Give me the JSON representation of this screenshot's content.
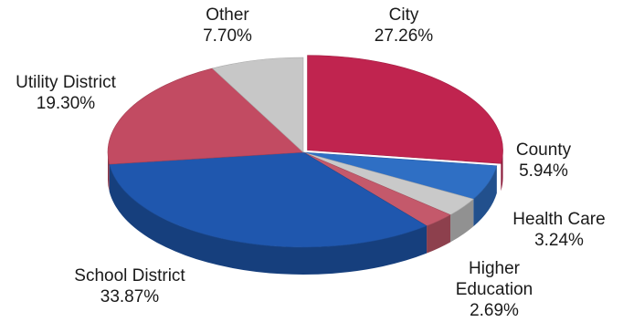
{
  "chart_data": {
    "type": "pie",
    "title": "",
    "legend": "none",
    "slices": [
      {
        "label": "City",
        "value": 27.26,
        "value_label": "27.26%",
        "color": "#c0244f"
      },
      {
        "label": "County",
        "value": 5.94,
        "value_label": "5.94%",
        "color": "#2f6fc4"
      },
      {
        "label": "Health Care",
        "value": 3.24,
        "value_label": "3.24%",
        "color": "#c9c9c9"
      },
      {
        "label": "Higher Education",
        "value": 2.69,
        "value_label": "2.69%",
        "color": "#c4596b"
      },
      {
        "label": "School District",
        "value": 33.87,
        "value_label": "33.87%",
        "color": "#1f57ae"
      },
      {
        "label": "Utility District",
        "value": 19.3,
        "value_label": "19.30%",
        "color": "#c24b62"
      },
      {
        "label": "Other",
        "value": 7.7,
        "value_label": "7.70%",
        "color": "#c7c7c7"
      }
    ]
  }
}
